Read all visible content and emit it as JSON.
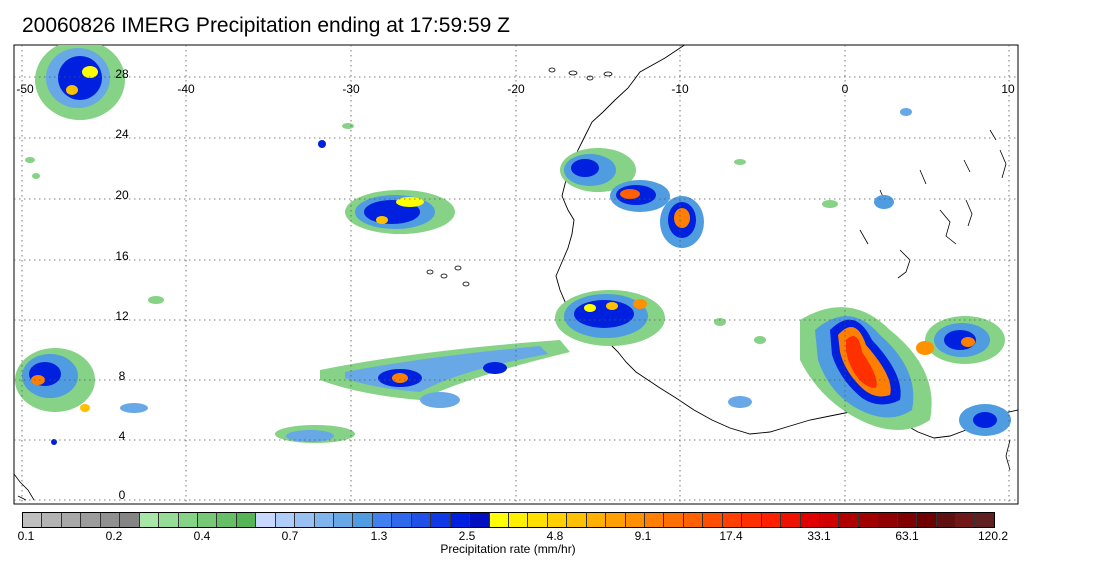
{
  "title": "20060826 IMERG Precipitation ending at 17:59:59 Z",
  "map": {
    "lon_range": [
      -50,
      10
    ],
    "lat_range": [
      -1,
      30
    ],
    "lon_ticks": [
      "-50",
      "-40",
      "-30",
      "-20",
      "-10",
      "0",
      "10"
    ],
    "lat_ticks": [
      "0",
      "4",
      "8",
      "12",
      "16",
      "20",
      "24",
      "28"
    ],
    "grid": true
  },
  "colorbar": {
    "title": "Precipitation rate (mm/hr)",
    "labels": [
      "0.1",
      "0.2",
      "0.4",
      "0.7",
      "1.3",
      "2.5",
      "4.8",
      "9.1",
      "17.4",
      "33.1",
      "63.1",
      "120.2"
    ],
    "colors": [
      "#bfbfbf",
      "#b3b3b3",
      "#a8a8a8",
      "#9c9c9c",
      "#909090",
      "#858585",
      "#a6e6a6",
      "#96dc96",
      "#86d286",
      "#76c876",
      "#66be66",
      "#56b456",
      "#c8d8ff",
      "#b0ccf8",
      "#98c0f2",
      "#80b4ec",
      "#68a8e6",
      "#509ce0",
      "#4080f0",
      "#3068ec",
      "#2050e8",
      "#1038e4",
      "#0020e0",
      "#0010c0",
      "#ffff00",
      "#fff000",
      "#ffe000",
      "#ffd000",
      "#ffc000",
      "#ffb000",
      "#ffa000",
      "#ff9000",
      "#ff8000",
      "#ff7000",
      "#ff6000",
      "#ff5000",
      "#ff4000",
      "#ff3000",
      "#ff2000",
      "#f01000",
      "#e00000",
      "#d00000",
      "#b00000",
      "#a00000",
      "#900000",
      "#800000",
      "#700000",
      "#601010",
      "#701818",
      "#602020"
    ]
  }
}
